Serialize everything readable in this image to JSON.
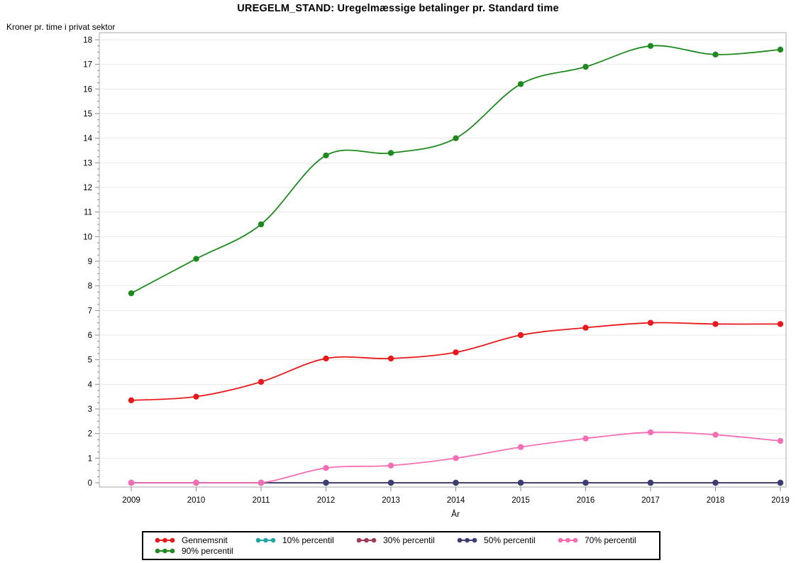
{
  "chart_data": {
    "type": "line",
    "title": "UREGELM_STAND: Uregelmæssige betalinger pr. Standard time",
    "ylabel": "Kroner pr. time i privat sektor",
    "xlabel": "År",
    "x": [
      2009,
      2010,
      2011,
      2012,
      2013,
      2014,
      2015,
      2016,
      2017,
      2018,
      2019
    ],
    "ylim": [
      0,
      18
    ],
    "ytick_step": 1,
    "y_minor_tick_step": 0.25,
    "grid": true,
    "legend_position": "bottom",
    "interpolation": "smooth-spline",
    "series": [
      {
        "name": "Gennemsnit",
        "color": "#E8191C",
        "values": [
          3.35,
          3.5,
          4.1,
          5.05,
          5.05,
          5.3,
          6.0,
          6.3,
          6.5,
          6.45,
          6.45
        ]
      },
      {
        "name": "10% percentil",
        "color": "#22A5A5",
        "values": [
          0,
          0,
          0,
          0,
          0,
          0,
          0,
          0,
          0,
          0,
          0
        ]
      },
      {
        "name": "30% percentil",
        "color": "#A23B55",
        "values": [
          0,
          0,
          0,
          0,
          0,
          0,
          0,
          0,
          0,
          0,
          0
        ]
      },
      {
        "name": "50% percentil",
        "color": "#3D3D73",
        "values": [
          0,
          0,
          0,
          0,
          0,
          0,
          0,
          0,
          0,
          0,
          0
        ]
      },
      {
        "name": "70% percentil",
        "color": "#F56EB4",
        "values": [
          0,
          0,
          0,
          0.6,
          0.7,
          1.0,
          1.45,
          1.8,
          2.05,
          1.95,
          1.7
        ]
      },
      {
        "name": "90% percentil",
        "color": "#1E8A1E",
        "values": [
          7.7,
          9.1,
          10.5,
          13.3,
          13.4,
          14.0,
          16.2,
          16.9,
          17.75,
          17.4,
          17.6
        ]
      }
    ],
    "colors": {
      "gridline": "#E8E8E8",
      "frame": "#A8A8A8",
      "tick": "#8C8C8C",
      "background": "#FFFFFF"
    }
  }
}
